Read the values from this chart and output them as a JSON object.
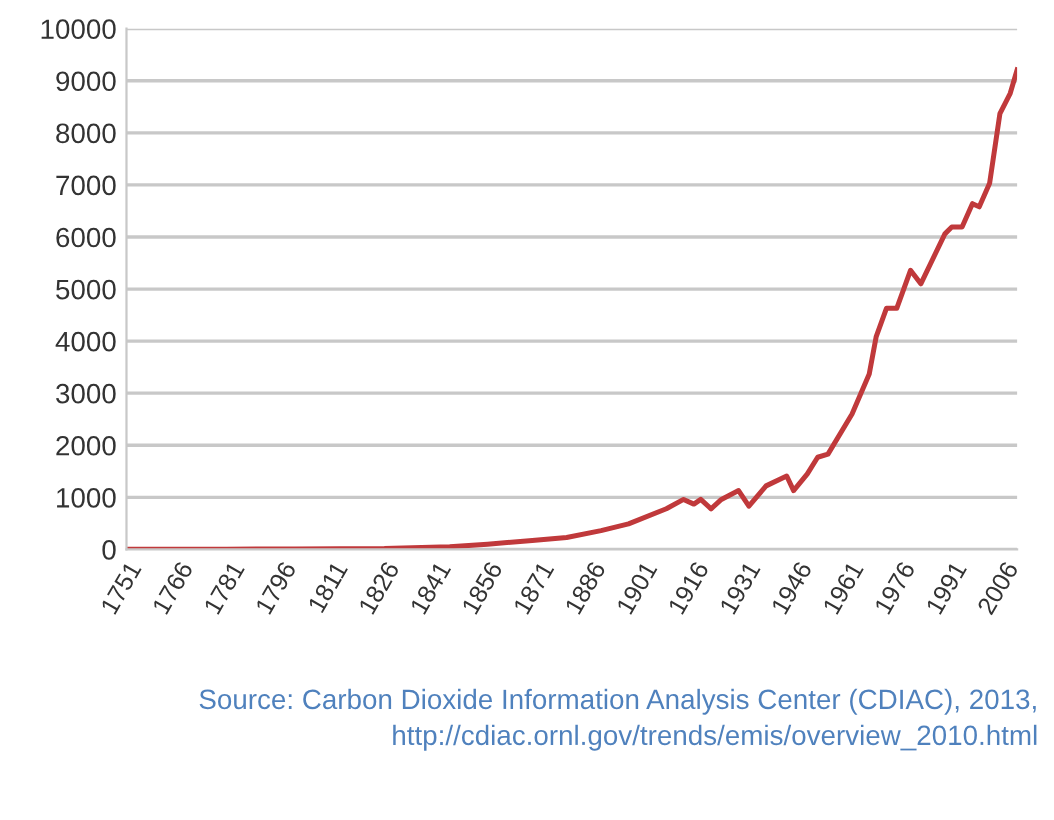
{
  "chart_data": {
    "type": "line",
    "x": [
      1751,
      1780,
      1800,
      1826,
      1845,
      1856,
      1869,
      1879,
      1889,
      1897,
      1908,
      1913,
      1916,
      1918,
      1921,
      1924,
      1929,
      1932,
      1937,
      1943,
      1945,
      1949,
      1952,
      1955,
      1962,
      1967,
      1969,
      1972,
      1975,
      1979,
      1982,
      1989,
      1991,
      1994,
      1997,
      1999,
      2002,
      2005,
      2008,
      2010
    ],
    "series": [
      {
        "color": "#c0393b",
        "values": [
          3,
          5,
          8,
          15,
          50,
          100,
          170,
          230,
          360,
          490,
          780,
          960,
          870,
          960,
          780,
          960,
          1130,
          830,
          1220,
          1410,
          1130,
          1450,
          1770,
          1830,
          2600,
          3370,
          4080,
          4630,
          4630,
          5360,
          5100,
          6060,
          6190,
          6190,
          6640,
          6580,
          7030,
          8370,
          8760,
          9210
        ]
      }
    ],
    "xlim": [
      1751,
      2010
    ],
    "xticks": [
      1751,
      1766,
      1781,
      1796,
      1811,
      1826,
      1841,
      1856,
      1871,
      1886,
      1901,
      1916,
      1931,
      1946,
      1961,
      1976,
      1991,
      2006
    ],
    "ylim": [
      0,
      10000
    ],
    "yticks": [
      0,
      1000,
      2000,
      3000,
      4000,
      5000,
      6000,
      7000,
      8000,
      9000,
      10000
    ],
    "grid": "y",
    "annotations": [
      "Source: Carbon Dioxide Information Analysis Center (CDIAC), 2013,\nhttp://cdiac.ornl.gov/trends/emis/overview_2010.html"
    ]
  }
}
